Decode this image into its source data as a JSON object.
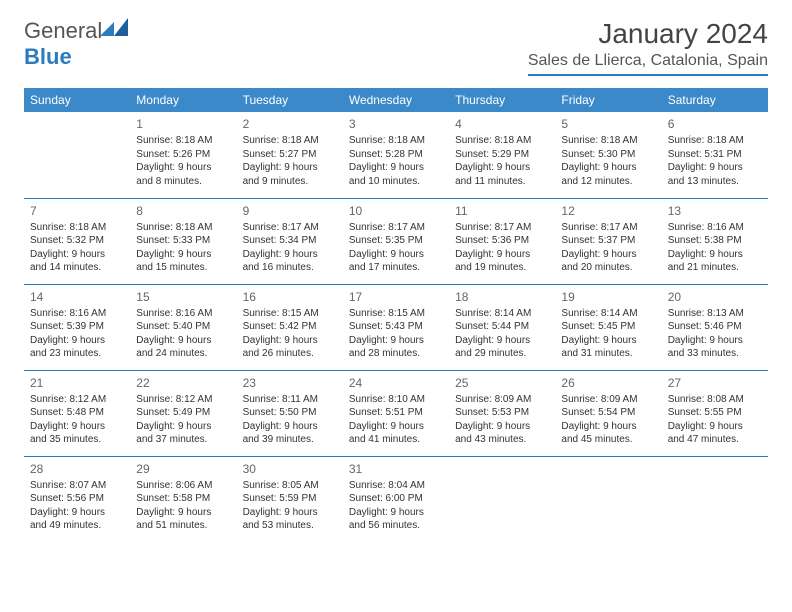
{
  "logo": {
    "text_general": "General",
    "text_blue": "Blue"
  },
  "title": "January 2024",
  "location": "Sales de Llierca, Catalonia, Spain",
  "colors": {
    "header_bg": "#3b89c9",
    "rule": "#2e7abf",
    "logo_blue": "#2b7bbf"
  },
  "day_headers": [
    "Sunday",
    "Monday",
    "Tuesday",
    "Wednesday",
    "Thursday",
    "Friday",
    "Saturday"
  ],
  "weeks": [
    [
      null,
      {
        "n": "1",
        "sr": "Sunrise: 8:18 AM",
        "ss": "Sunset: 5:26 PM",
        "d1": "Daylight: 9 hours",
        "d2": "and 8 minutes."
      },
      {
        "n": "2",
        "sr": "Sunrise: 8:18 AM",
        "ss": "Sunset: 5:27 PM",
        "d1": "Daylight: 9 hours",
        "d2": "and 9 minutes."
      },
      {
        "n": "3",
        "sr": "Sunrise: 8:18 AM",
        "ss": "Sunset: 5:28 PM",
        "d1": "Daylight: 9 hours",
        "d2": "and 10 minutes."
      },
      {
        "n": "4",
        "sr": "Sunrise: 8:18 AM",
        "ss": "Sunset: 5:29 PM",
        "d1": "Daylight: 9 hours",
        "d2": "and 11 minutes."
      },
      {
        "n": "5",
        "sr": "Sunrise: 8:18 AM",
        "ss": "Sunset: 5:30 PM",
        "d1": "Daylight: 9 hours",
        "d2": "and 12 minutes."
      },
      {
        "n": "6",
        "sr": "Sunrise: 8:18 AM",
        "ss": "Sunset: 5:31 PM",
        "d1": "Daylight: 9 hours",
        "d2": "and 13 minutes."
      }
    ],
    [
      {
        "n": "7",
        "sr": "Sunrise: 8:18 AM",
        "ss": "Sunset: 5:32 PM",
        "d1": "Daylight: 9 hours",
        "d2": "and 14 minutes."
      },
      {
        "n": "8",
        "sr": "Sunrise: 8:18 AM",
        "ss": "Sunset: 5:33 PM",
        "d1": "Daylight: 9 hours",
        "d2": "and 15 minutes."
      },
      {
        "n": "9",
        "sr": "Sunrise: 8:17 AM",
        "ss": "Sunset: 5:34 PM",
        "d1": "Daylight: 9 hours",
        "d2": "and 16 minutes."
      },
      {
        "n": "10",
        "sr": "Sunrise: 8:17 AM",
        "ss": "Sunset: 5:35 PM",
        "d1": "Daylight: 9 hours",
        "d2": "and 17 minutes."
      },
      {
        "n": "11",
        "sr": "Sunrise: 8:17 AM",
        "ss": "Sunset: 5:36 PM",
        "d1": "Daylight: 9 hours",
        "d2": "and 19 minutes."
      },
      {
        "n": "12",
        "sr": "Sunrise: 8:17 AM",
        "ss": "Sunset: 5:37 PM",
        "d1": "Daylight: 9 hours",
        "d2": "and 20 minutes."
      },
      {
        "n": "13",
        "sr": "Sunrise: 8:16 AM",
        "ss": "Sunset: 5:38 PM",
        "d1": "Daylight: 9 hours",
        "d2": "and 21 minutes."
      }
    ],
    [
      {
        "n": "14",
        "sr": "Sunrise: 8:16 AM",
        "ss": "Sunset: 5:39 PM",
        "d1": "Daylight: 9 hours",
        "d2": "and 23 minutes."
      },
      {
        "n": "15",
        "sr": "Sunrise: 8:16 AM",
        "ss": "Sunset: 5:40 PM",
        "d1": "Daylight: 9 hours",
        "d2": "and 24 minutes."
      },
      {
        "n": "16",
        "sr": "Sunrise: 8:15 AM",
        "ss": "Sunset: 5:42 PM",
        "d1": "Daylight: 9 hours",
        "d2": "and 26 minutes."
      },
      {
        "n": "17",
        "sr": "Sunrise: 8:15 AM",
        "ss": "Sunset: 5:43 PM",
        "d1": "Daylight: 9 hours",
        "d2": "and 28 minutes."
      },
      {
        "n": "18",
        "sr": "Sunrise: 8:14 AM",
        "ss": "Sunset: 5:44 PM",
        "d1": "Daylight: 9 hours",
        "d2": "and 29 minutes."
      },
      {
        "n": "19",
        "sr": "Sunrise: 8:14 AM",
        "ss": "Sunset: 5:45 PM",
        "d1": "Daylight: 9 hours",
        "d2": "and 31 minutes."
      },
      {
        "n": "20",
        "sr": "Sunrise: 8:13 AM",
        "ss": "Sunset: 5:46 PM",
        "d1": "Daylight: 9 hours",
        "d2": "and 33 minutes."
      }
    ],
    [
      {
        "n": "21",
        "sr": "Sunrise: 8:12 AM",
        "ss": "Sunset: 5:48 PM",
        "d1": "Daylight: 9 hours",
        "d2": "and 35 minutes."
      },
      {
        "n": "22",
        "sr": "Sunrise: 8:12 AM",
        "ss": "Sunset: 5:49 PM",
        "d1": "Daylight: 9 hours",
        "d2": "and 37 minutes."
      },
      {
        "n": "23",
        "sr": "Sunrise: 8:11 AM",
        "ss": "Sunset: 5:50 PM",
        "d1": "Daylight: 9 hours",
        "d2": "and 39 minutes."
      },
      {
        "n": "24",
        "sr": "Sunrise: 8:10 AM",
        "ss": "Sunset: 5:51 PM",
        "d1": "Daylight: 9 hours",
        "d2": "and 41 minutes."
      },
      {
        "n": "25",
        "sr": "Sunrise: 8:09 AM",
        "ss": "Sunset: 5:53 PM",
        "d1": "Daylight: 9 hours",
        "d2": "and 43 minutes."
      },
      {
        "n": "26",
        "sr": "Sunrise: 8:09 AM",
        "ss": "Sunset: 5:54 PM",
        "d1": "Daylight: 9 hours",
        "d2": "and 45 minutes."
      },
      {
        "n": "27",
        "sr": "Sunrise: 8:08 AM",
        "ss": "Sunset: 5:55 PM",
        "d1": "Daylight: 9 hours",
        "d2": "and 47 minutes."
      }
    ],
    [
      {
        "n": "28",
        "sr": "Sunrise: 8:07 AM",
        "ss": "Sunset: 5:56 PM",
        "d1": "Daylight: 9 hours",
        "d2": "and 49 minutes."
      },
      {
        "n": "29",
        "sr": "Sunrise: 8:06 AM",
        "ss": "Sunset: 5:58 PM",
        "d1": "Daylight: 9 hours",
        "d2": "and 51 minutes."
      },
      {
        "n": "30",
        "sr": "Sunrise: 8:05 AM",
        "ss": "Sunset: 5:59 PM",
        "d1": "Daylight: 9 hours",
        "d2": "and 53 minutes."
      },
      {
        "n": "31",
        "sr": "Sunrise: 8:04 AM",
        "ss": "Sunset: 6:00 PM",
        "d1": "Daylight: 9 hours",
        "d2": "and 56 minutes."
      },
      null,
      null,
      null
    ]
  ]
}
